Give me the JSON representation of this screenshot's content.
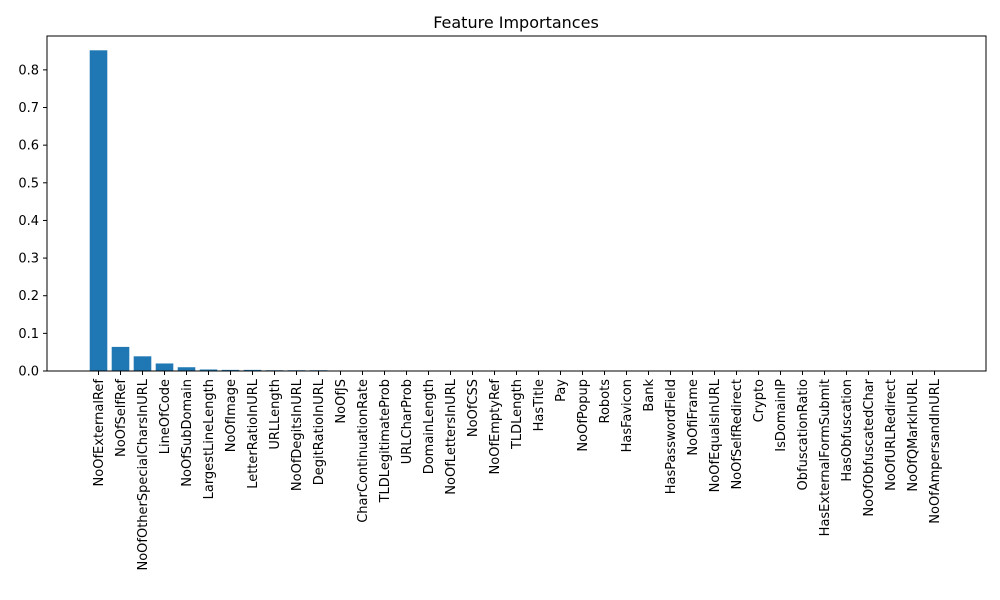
{
  "chart_data": {
    "type": "bar",
    "title": "Feature Importances",
    "xlabel": "",
    "ylabel": "",
    "ylim": [
      0,
      0.89
    ],
    "yticks": [
      0.0,
      0.1,
      0.2,
      0.3,
      0.4,
      0.5,
      0.6,
      0.7,
      0.8
    ],
    "ytick_labels": [
      "0.0",
      "0.1",
      "0.2",
      "0.3",
      "0.4",
      "0.5",
      "0.6",
      "0.7",
      "0.8"
    ],
    "grid": false,
    "legend": "none",
    "bar_color": "#1f77b4",
    "categories": [
      "NoOfExternalRef",
      "NoOfSelfRef",
      "NoOfOtherSpecialCharsInURL",
      "LineOfCode",
      "NoOfSubDomain",
      "LargestLineLength",
      "NoOfImage",
      "LetterRatioInURL",
      "URLLength",
      "NoOfDegitsInURL",
      "DegitRatioInURL",
      "NoOfJS",
      "CharContinuationRate",
      "TLDLegitimateProb",
      "URLCharProb",
      "DomainLength",
      "NoOfLettersInURL",
      "NoOfCSS",
      "NoOfEmptyRef",
      "TLDLength",
      "HasTitle",
      "Pay",
      "NoOfPopup",
      "Robots",
      "HasFavicon",
      "Bank",
      "HasPasswordField",
      "NoOfiFrame",
      "NoOfEqualsInURL",
      "NoOfSelfRedirect",
      "Crypto",
      "IsDomainIP",
      "ObfuscationRatio",
      "HasExternalFormSubmit",
      "HasObfuscation",
      "NoOfObfuscatedChar",
      "NoOfURLRedirect",
      "NoOfQMarkInURL",
      "NoOfAmpersandInURL"
    ],
    "values": [
      0.852,
      0.064,
      0.039,
      0.02,
      0.01,
      0.004,
      0.003,
      0.003,
      0.002,
      0.002,
      0.002,
      0.001,
      0.0005,
      0.0005,
      0.0004,
      0.0004,
      0.0003,
      0.0003,
      0.0003,
      0.0002,
      0.0002,
      0.0002,
      0.0001,
      0.0001,
      0.0001,
      0.0001,
      0.0001,
      0.0001,
      0.0001,
      0.0,
      0.0,
      0.0,
      0.0,
      0.0,
      0.0,
      0.0,
      0.0,
      0.0,
      0.0
    ]
  }
}
